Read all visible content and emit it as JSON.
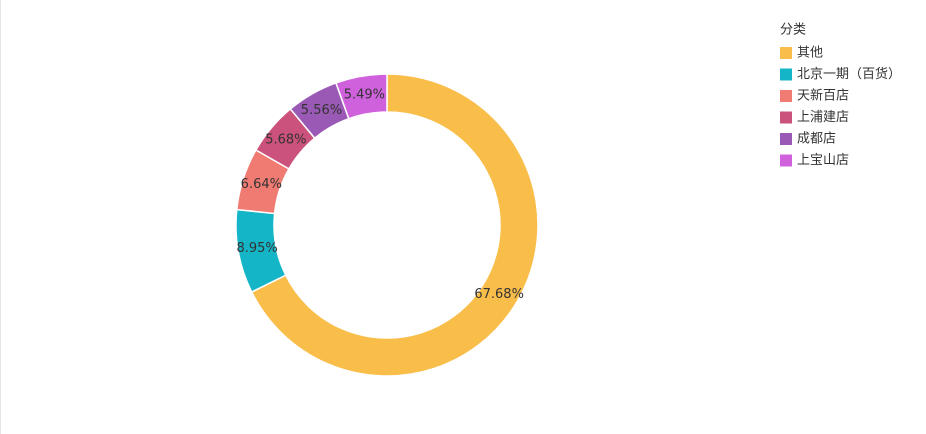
{
  "chart_data": {
    "type": "pie",
    "legend_title": "分类",
    "legend": "top-right",
    "categories": [
      "其他",
      "北京一期（百货）",
      "天新百店",
      "上浦建店",
      "成都店",
      "上宝山店"
    ],
    "values": [
      67.68,
      8.95,
      6.64,
      5.68,
      5.56,
      5.49
    ],
    "value_labels": [
      "67.68%",
      "8.95%",
      "6.64%",
      "5.68%",
      "5.56%",
      "5.49%"
    ],
    "colors": [
      "#f9bd4a",
      "#13b5c6",
      "#ef7b72",
      "#cb527c",
      "#9b59b6",
      "#d061dd"
    ]
  }
}
